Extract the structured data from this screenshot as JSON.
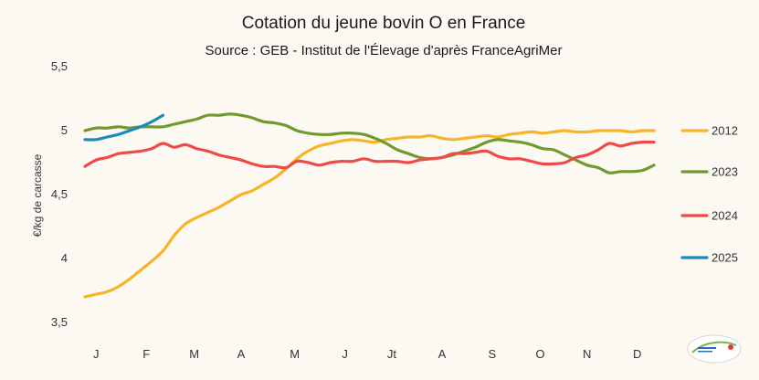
{
  "chart_data": {
    "type": "line",
    "title": "Cotation du jeune bovin O en France",
    "subtitle": "Source : GEB - Institut de l'Élevage d'après FranceAgriMer",
    "ylabel": "€/kg de carcasse",
    "xlabel": "",
    "ylim": [
      3.5,
      5.5
    ],
    "yticks": [
      3.5,
      4,
      4.5,
      5,
      5.5
    ],
    "ytick_labels": [
      "3,5",
      "4",
      "4,5",
      "5",
      "5,5"
    ],
    "xlim": [
      1,
      52
    ],
    "month_ticks": [
      {
        "label": "J",
        "week": 2
      },
      {
        "label": "F",
        "week": 6.5
      },
      {
        "label": "M",
        "week": 10.8
      },
      {
        "label": "A",
        "week": 15
      },
      {
        "label": "M",
        "week": 19.8
      },
      {
        "label": "J",
        "week": 24.3
      },
      {
        "label": "Jt",
        "week": 28.5
      },
      {
        "label": "A",
        "week": 33
      },
      {
        "label": "S",
        "week": 37.5
      },
      {
        "label": "O",
        "week": 41.8
      },
      {
        "label": "N",
        "week": 46
      },
      {
        "label": "D",
        "week": 50.5
      }
    ],
    "gridlines": "none",
    "legend_position": "right",
    "series": [
      {
        "name": "2012",
        "color": "#f6b42a",
        "x": [
          1,
          2,
          3,
          4,
          5,
          6,
          7,
          8,
          9,
          10,
          11,
          12,
          13,
          14,
          15,
          16,
          17,
          18,
          19,
          20,
          21,
          22,
          23,
          24,
          25,
          26,
          27,
          28,
          29,
          30,
          31,
          32,
          33,
          34,
          35,
          36,
          37,
          38,
          39,
          40,
          41,
          42,
          43,
          44,
          45,
          46,
          47,
          48,
          49,
          50,
          51,
          52
        ],
        "values": [
          3.7,
          3.72,
          3.74,
          3.78,
          3.84,
          3.91,
          3.98,
          4.06,
          4.18,
          4.27,
          4.32,
          4.36,
          4.4,
          4.45,
          4.5,
          4.53,
          4.58,
          4.63,
          4.7,
          4.78,
          4.84,
          4.88,
          4.9,
          4.92,
          4.93,
          4.92,
          4.91,
          4.93,
          4.94,
          4.95,
          4.95,
          4.96,
          4.94,
          4.93,
          4.94,
          4.95,
          4.96,
          4.95,
          4.97,
          4.98,
          4.99,
          4.98,
          4.99,
          5.0,
          4.99,
          4.99,
          5.0,
          5.0,
          5.0,
          4.99,
          5.0,
          5.0
        ]
      },
      {
        "name": "2023",
        "color": "#6f9a2e",
        "x": [
          1,
          2,
          3,
          4,
          5,
          6,
          7,
          8,
          9,
          10,
          11,
          12,
          13,
          14,
          15,
          16,
          17,
          18,
          19,
          20,
          21,
          22,
          23,
          24,
          25,
          26,
          27,
          28,
          29,
          30,
          31,
          32,
          33,
          34,
          35,
          36,
          37,
          38,
          39,
          40,
          41,
          42,
          43,
          44,
          45,
          46,
          47,
          48,
          49,
          50,
          51,
          52
        ],
        "values": [
          5.0,
          5.02,
          5.02,
          5.03,
          5.02,
          5.03,
          5.03,
          5.03,
          5.05,
          5.07,
          5.09,
          5.12,
          5.12,
          5.13,
          5.12,
          5.1,
          5.07,
          5.06,
          5.04,
          5.0,
          4.98,
          4.97,
          4.97,
          4.98,
          4.98,
          4.97,
          4.94,
          4.9,
          4.85,
          4.82,
          4.79,
          4.78,
          4.79,
          4.81,
          4.84,
          4.87,
          4.91,
          4.93,
          4.92,
          4.91,
          4.89,
          4.86,
          4.85,
          4.81,
          4.77,
          4.73,
          4.71,
          4.67,
          4.68,
          4.68,
          4.69,
          4.73
        ]
      },
      {
        "name": "2024",
        "color": "#ef4a4a",
        "x": [
          1,
          2,
          3,
          4,
          5,
          6,
          7,
          8,
          9,
          10,
          11,
          12,
          13,
          14,
          15,
          16,
          17,
          18,
          19,
          20,
          21,
          22,
          23,
          24,
          25,
          26,
          27,
          28,
          29,
          30,
          31,
          32,
          33,
          34,
          35,
          36,
          37,
          38,
          39,
          40,
          41,
          42,
          43,
          44,
          45,
          46,
          47,
          48,
          49,
          50,
          51,
          52
        ],
        "values": [
          4.72,
          4.77,
          4.79,
          4.82,
          4.83,
          4.84,
          4.86,
          4.9,
          4.87,
          4.89,
          4.86,
          4.84,
          4.81,
          4.79,
          4.77,
          4.74,
          4.72,
          4.72,
          4.71,
          4.76,
          4.75,
          4.73,
          4.75,
          4.76,
          4.76,
          4.78,
          4.76,
          4.76,
          4.76,
          4.75,
          4.77,
          4.78,
          4.79,
          4.82,
          4.82,
          4.83,
          4.84,
          4.8,
          4.78,
          4.78,
          4.76,
          4.74,
          4.74,
          4.75,
          4.79,
          4.81,
          4.85,
          4.9,
          4.88,
          4.9,
          4.91,
          4.91
        ]
      },
      {
        "name": "2025",
        "color": "#1b8bbd",
        "x": [
          1,
          2,
          3,
          4,
          5,
          6,
          7,
          8
        ],
        "values": [
          4.93,
          4.93,
          4.95,
          4.97,
          5.0,
          5.03,
          5.07,
          5.12
        ]
      }
    ]
  },
  "logo": {
    "label": "idele"
  }
}
